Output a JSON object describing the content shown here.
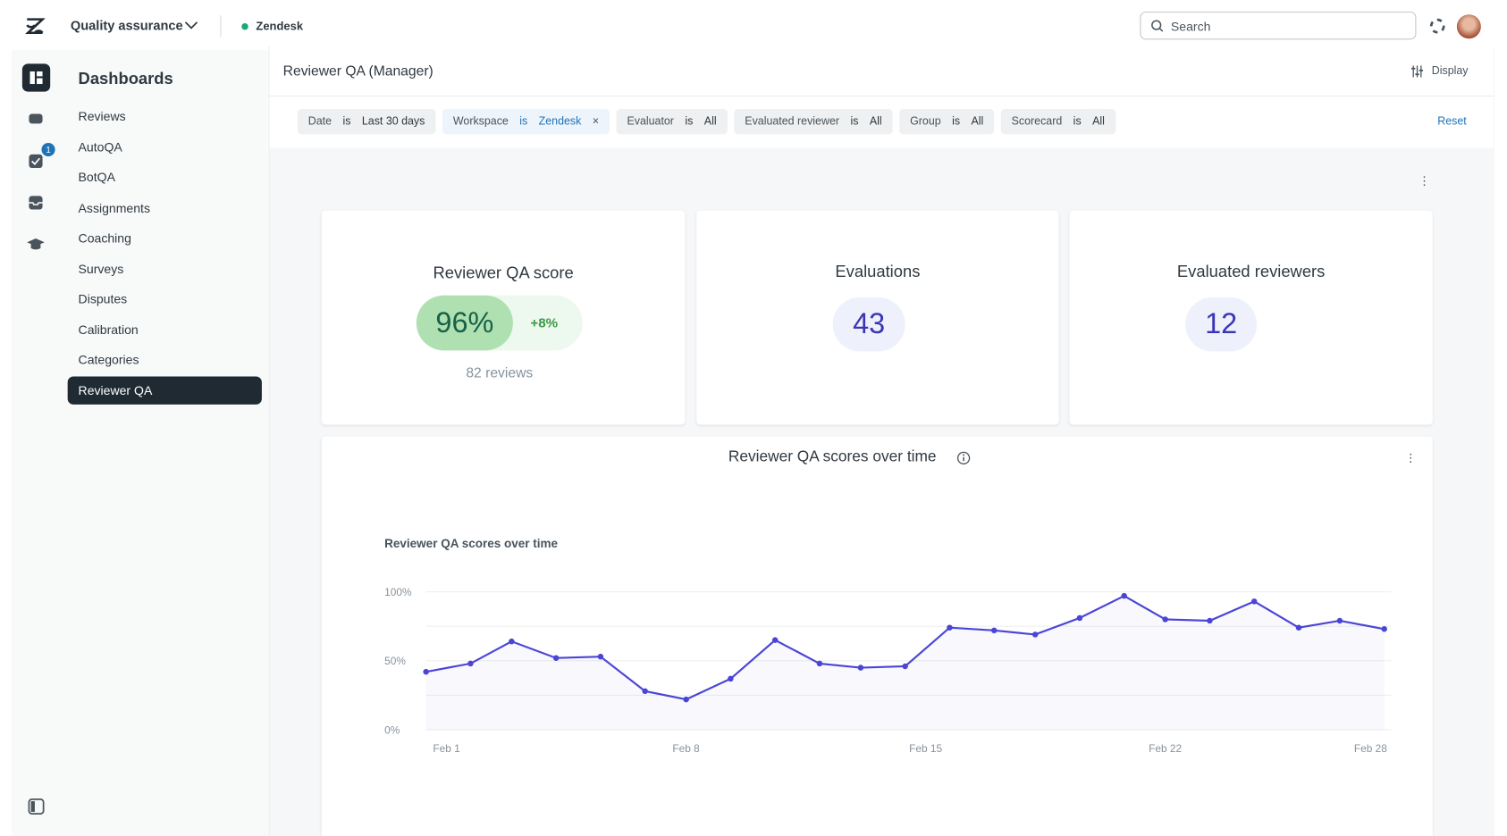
{
  "app": {
    "product": "Quality assurance",
    "workspace": "Zendesk",
    "search": "Search",
    "badge": "1"
  },
  "sidebar": {
    "title": "Dashboards",
    "items": [
      "Reviews",
      "AutoQA",
      "BotQA",
      "Assignments",
      "Coaching",
      "Surveys",
      "Disputes",
      "Calibration",
      "Categories",
      "Reviewer QA"
    ],
    "active": 9
  },
  "page": {
    "title": "Reviewer QA (Manager)",
    "display": "Display",
    "reset": "Reset"
  },
  "filters": [
    {
      "field": "Date",
      "op": "is",
      "value": "Last 30 days"
    },
    {
      "field": "Workspace",
      "op": "is",
      "value": "Zendesk",
      "removable": true
    },
    {
      "field": "Evaluator",
      "op": "is",
      "value": "All"
    },
    {
      "field": "Evaluated reviewer",
      "op": "is",
      "value": "All"
    },
    {
      "field": "Group",
      "op": "is",
      "value": "All"
    },
    {
      "field": "Scorecard",
      "op": "is",
      "value": "All"
    }
  ],
  "cards": [
    {
      "title": "Reviewer QA score",
      "value": "96%",
      "delta": "+8%",
      "note": "82 reviews"
    },
    {
      "title": "Evaluations",
      "value": "43"
    },
    {
      "title": "Evaluated reviewers",
      "value": "12"
    }
  ],
  "panel": {
    "title": "Reviewer QA scores over time"
  },
  "chart_data": {
    "type": "line",
    "title": "Reviewer QA scores over time",
    "color": "#4b45d6",
    "x": [
      0.4,
      1.7,
      2.9,
      4.2,
      5.5,
      6.8,
      8.0,
      9.3,
      10.6,
      11.9,
      13.1,
      14.4,
      15.7,
      17.0,
      18.2,
      19.5,
      20.8,
      22.0,
      23.3,
      24.6,
      25.9,
      27.1,
      28.4
    ],
    "values": [
      42,
      48,
      64,
      52,
      53,
      28,
      22,
      37,
      65,
      48,
      45,
      46,
      74,
      72,
      69,
      81,
      97,
      80,
      79,
      93,
      74,
      79,
      73
    ],
    "xlim": [
      0.4,
      28.6
    ],
    "xticks": [
      {
        "value": 1,
        "label": "Feb 1"
      },
      {
        "value": 8,
        "label": "Feb 8"
      },
      {
        "value": 15,
        "label": "Feb 15"
      },
      {
        "value": 22,
        "label": "Feb 22"
      },
      {
        "value": 28,
        "label": "Feb 28"
      }
    ],
    "ylim": [
      0,
      100
    ],
    "yticks": [
      {
        "value": 0,
        "label": "0%"
      },
      {
        "value": 50,
        "label": "50%"
      },
      {
        "value": 100,
        "label": "100%"
      }
    ],
    "ygrid": [
      0,
      25,
      50,
      75,
      100
    ],
    "grid": true
  }
}
